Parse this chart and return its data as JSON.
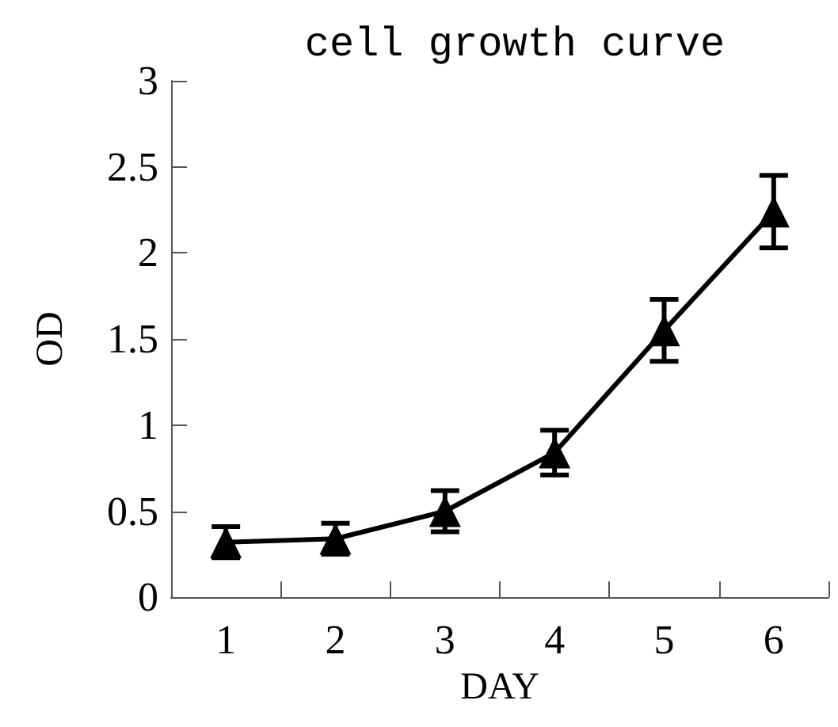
{
  "chart_data": {
    "type": "line",
    "title": "cell growth curve",
    "xlabel": "DAY",
    "ylabel": "OD",
    "categories": [
      "1",
      "2",
      "3",
      "4",
      "5",
      "6"
    ],
    "series": [
      {
        "color": "#000000",
        "values": [
          0.32,
          0.34,
          0.5,
          0.84,
          1.55,
          2.24
        ],
        "errors": [
          0.09,
          0.09,
          0.12,
          0.13,
          0.18,
          0.21
        ]
      }
    ],
    "ylim": [
      0,
      3
    ],
    "yticks": [
      0,
      0.5,
      1,
      1.5,
      2,
      2.5,
      3
    ],
    "grid": false,
    "marker": "triangle",
    "line_style": "solid"
  }
}
